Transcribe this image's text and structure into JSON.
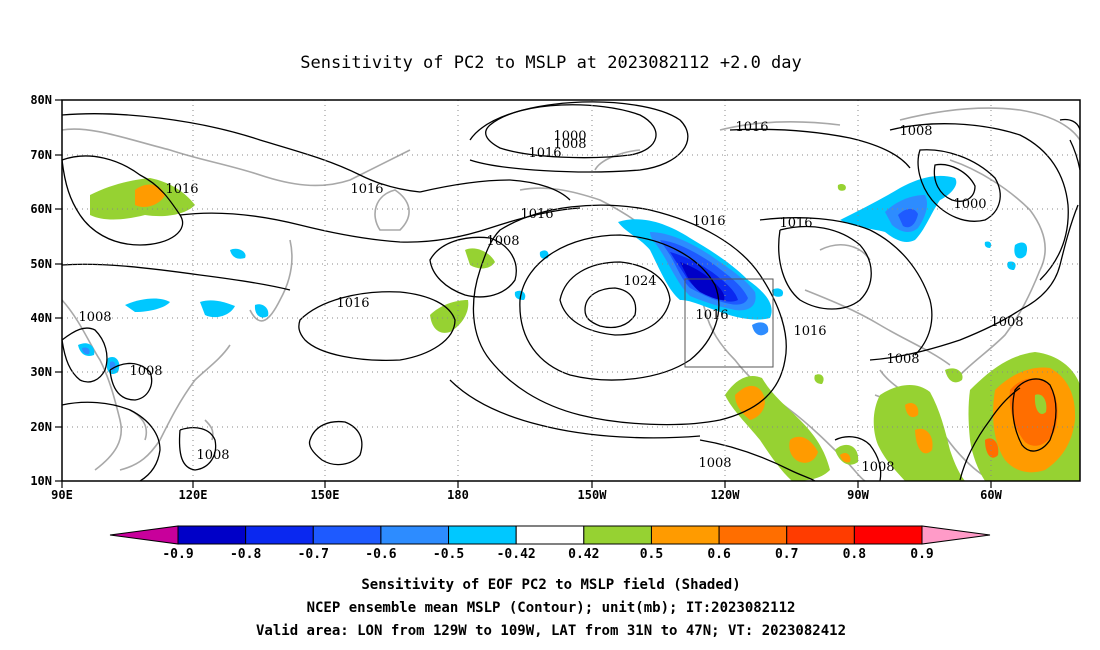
{
  "title": "Sensitivity of PC2 to MSLP at 2023082112 +2.0 day",
  "lat_ticks": [
    "80N",
    "70N",
    "60N",
    "50N",
    "40N",
    "30N",
    "20N",
    "10N"
  ],
  "lon_ticks": [
    "90E",
    "120E",
    "150E",
    "180",
    "150W",
    "120W",
    "90W",
    "60W"
  ],
  "contour_labels": [
    {
      "text": "1000"
    },
    {
      "text": "1008"
    },
    {
      "text": "1016"
    },
    {
      "text": "1016"
    },
    {
      "text": "1008"
    },
    {
      "text": "1016"
    },
    {
      "text": "1008"
    },
    {
      "text": "1000"
    },
    {
      "text": "1016"
    },
    {
      "text": "1016"
    },
    {
      "text": "1016"
    },
    {
      "text": "1008"
    },
    {
      "text": "1016"
    },
    {
      "text": "1024"
    },
    {
      "text": "1016"
    },
    {
      "text": "1016"
    },
    {
      "text": "1008"
    },
    {
      "text": "1016"
    },
    {
      "text": "1008"
    },
    {
      "text": "1008"
    },
    {
      "text": "1008"
    },
    {
      "text": "1008"
    },
    {
      "text": "1008"
    }
  ],
  "colorbar": {
    "labels": [
      "-0.9",
      "-0.8",
      "-0.7",
      "-0.6",
      "-0.5",
      "-0.42",
      "0.42",
      "0.5",
      "0.6",
      "0.7",
      "0.8",
      "0.9"
    ],
    "colors": [
      "#0000c8",
      "#0a28f0",
      "#1e5aff",
      "#2d8cff",
      "#00c8ff",
      "#ffffff",
      "#96d232",
      "#ff9b00",
      "#ff6e00",
      "#ff3c00",
      "#ff0000"
    ],
    "low_end_color": "#c8009b",
    "high_end_color": "#ff9bc8"
  },
  "footer": {
    "line1": "Sensitivity of EOF PC2 to MSLP field (Shaded)",
    "line2": "NCEP ensemble mean MSLP (Contour); unit(mb); IT:2023082112",
    "line3": "Valid area: LON from 129W to 109W, LAT from 31N to 47N; VT: 2023082412"
  }
}
